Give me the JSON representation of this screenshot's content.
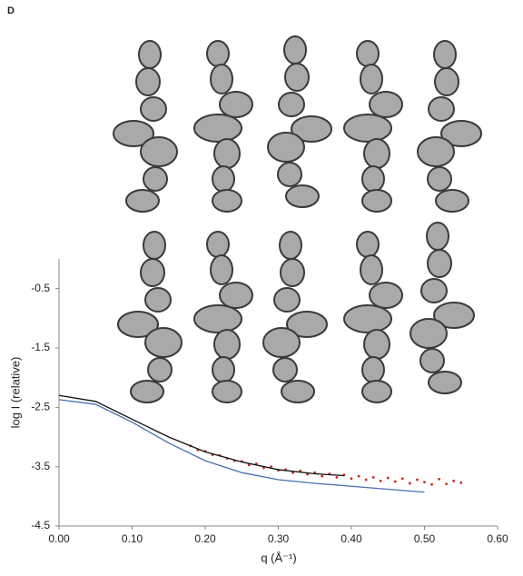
{
  "panel_label": "D",
  "chart_data": {
    "type": "line",
    "x_label": "q (Å⁻¹)",
    "y_label": "log I (relative)",
    "xlim": [
      0,
      0.6
    ],
    "ylim": [
      -4.5,
      0
    ],
    "xticks": [
      {
        "value": 0,
        "label": "0.00"
      },
      {
        "value": 0.1,
        "label": "0.10"
      },
      {
        "value": 0.2,
        "label": "0.20"
      },
      {
        "value": 0.3,
        "label": "0.30"
      },
      {
        "value": 0.4,
        "label": "0.40"
      },
      {
        "value": 0.5,
        "label": "0.50"
      },
      {
        "value": 0.6,
        "label": "0.60"
      }
    ],
    "yticks": [
      -4.5,
      -3.5,
      -2.5,
      -1.5,
      -0.5
    ],
    "series": [
      {
        "style": "points",
        "color": "#cc2a22",
        "x": [
          0.18,
          0.19,
          0.2,
          0.21,
          0.22,
          0.23,
          0.24,
          0.25,
          0.26,
          0.27,
          0.28,
          0.29,
          0.3,
          0.31,
          0.32,
          0.33,
          0.34,
          0.35,
          0.36,
          0.37,
          0.38,
          0.39,
          0.4,
          0.41,
          0.42,
          0.43,
          0.44,
          0.45,
          0.46,
          0.47,
          0.48,
          0.49,
          0.5,
          0.51,
          0.52,
          0.53,
          0.54,
          0.55
        ],
        "values": [
          -3.15,
          -3.22,
          -3.24,
          -3.3,
          -3.31,
          -3.36,
          -3.4,
          -3.41,
          -3.47,
          -3.45,
          -3.52,
          -3.5,
          -3.56,
          -3.55,
          -3.6,
          -3.57,
          -3.63,
          -3.6,
          -3.66,
          -3.62,
          -3.68,
          -3.64,
          -3.7,
          -3.66,
          -3.72,
          -3.68,
          -3.74,
          -3.69,
          -3.75,
          -3.7,
          -3.78,
          -3.72,
          -3.76,
          -3.8,
          -3.71,
          -3.79,
          -3.74,
          -3.77
        ]
      },
      {
        "style": "line",
        "color": "#111111",
        "x": [
          0,
          0.05,
          0.1,
          0.15,
          0.2,
          0.25,
          0.3,
          0.35,
          0.39
        ],
        "values": [
          -2.3,
          -2.4,
          -2.7,
          -3.0,
          -3.25,
          -3.42,
          -3.55,
          -3.62,
          -3.65
        ]
      },
      {
        "style": "line",
        "color": "#4a6db3",
        "x": [
          0,
          0.05,
          0.1,
          0.15,
          0.2,
          0.25,
          0.3,
          0.35,
          0.4,
          0.45,
          0.5
        ],
        "values": [
          -2.37,
          -2.45,
          -2.75,
          -3.1,
          -3.4,
          -3.6,
          -3.72,
          -3.78,
          -3.83,
          -3.88,
          -3.93
        ]
      }
    ]
  }
}
